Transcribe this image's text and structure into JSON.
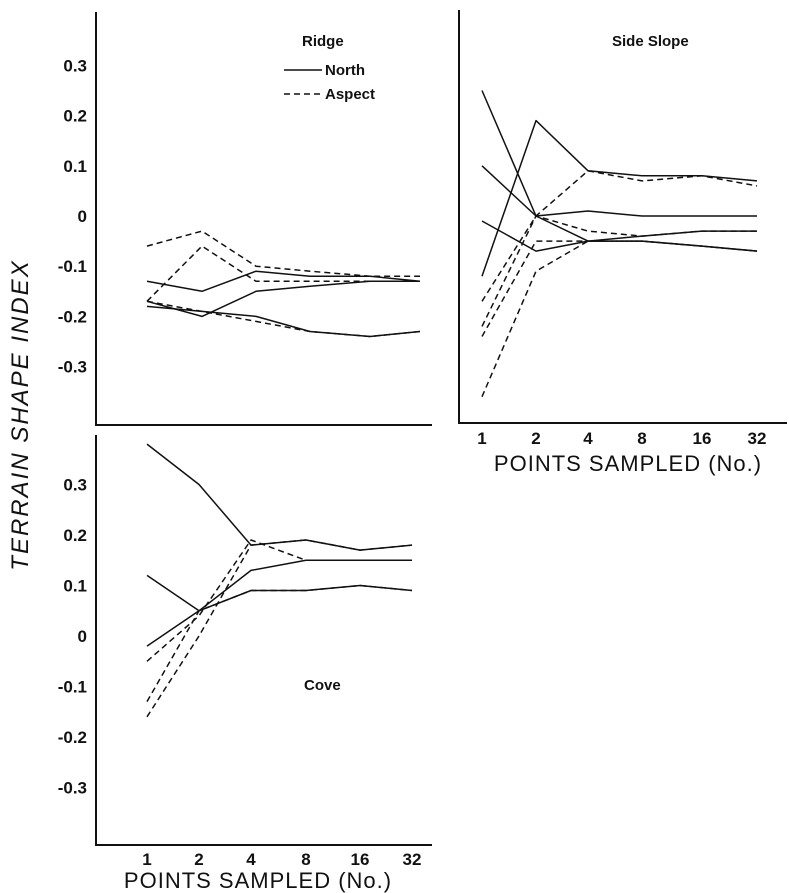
{
  "figure": {
    "ylabel": "TERRAIN SHAPE INDEX"
  },
  "legend": {
    "title": "Ridge",
    "north_label": "North",
    "aspect_label": "Aspect"
  },
  "chart_data": [
    {
      "type": "line",
      "title": "Ridge",
      "xlabel": "",
      "ylabel": "TERRAIN SHAPE INDEX",
      "categories": [
        "1",
        "2",
        "4",
        "8",
        "16",
        "32"
      ],
      "yticks": [
        "0.3",
        "0.2",
        "0.1",
        "0",
        "-0.1",
        "-0.2",
        "-0.3"
      ],
      "ylim": [
        -0.4,
        0.4
      ],
      "series": [
        {
          "style": "solid",
          "values": [
            -0.13,
            -0.15,
            -0.11,
            -0.12,
            -0.12,
            -0.13
          ]
        },
        {
          "style": "solid",
          "values": [
            -0.17,
            -0.2,
            -0.15,
            -0.14,
            -0.13,
            -0.13
          ]
        },
        {
          "style": "solid",
          "values": [
            -0.18,
            -0.19,
            -0.2,
            -0.23,
            -0.24,
            -0.23
          ]
        },
        {
          "style": "dashed",
          "values": [
            -0.06,
            -0.03,
            -0.1,
            -0.11,
            -0.12,
            -0.12
          ]
        },
        {
          "style": "dashed",
          "values": [
            -0.17,
            -0.06,
            -0.13,
            -0.13,
            -0.13,
            -0.13
          ]
        },
        {
          "style": "dashed",
          "values": [
            -0.17,
            -0.19,
            -0.21,
            -0.23,
            -0.24,
            -0.23
          ]
        }
      ]
    },
    {
      "type": "line",
      "title": "Side Slope",
      "xlabel": "POINTS SAMPLED (No.)",
      "categories": [
        "1",
        "2",
        "4",
        "8",
        "16",
        "32"
      ],
      "ylim": [
        -0.4,
        0.4
      ],
      "series": [
        {
          "style": "solid",
          "values": [
            0.25,
            0.0,
            0.01,
            0.0,
            0.0,
            0.0
          ]
        },
        {
          "style": "solid",
          "values": [
            0.1,
            0.0,
            -0.05,
            -0.05,
            -0.06,
            -0.07
          ]
        },
        {
          "style": "solid",
          "values": [
            -0.01,
            -0.07,
            -0.05,
            -0.04,
            -0.03,
            -0.03
          ]
        },
        {
          "style": "solid",
          "values": [
            -0.12,
            0.19,
            0.09,
            0.08,
            0.08,
            0.07
          ]
        },
        {
          "style": "dashed",
          "values": [
            -0.17,
            0.0,
            0.09,
            0.07,
            0.08,
            0.06
          ]
        },
        {
          "style": "dashed",
          "values": [
            -0.22,
            0.0,
            -0.03,
            -0.04,
            -0.03,
            -0.03
          ]
        },
        {
          "style": "dashed",
          "values": [
            -0.24,
            -0.05,
            -0.05,
            -0.05,
            -0.06,
            -0.07
          ]
        },
        {
          "style": "dashed",
          "values": [
            -0.36,
            -0.11,
            -0.05,
            -0.05,
            -0.06,
            -0.07
          ]
        }
      ]
    },
    {
      "type": "line",
      "title": "Cove",
      "xlabel": "POINTS SAMPLED (No.)",
      "ylabel": "TERRAIN SHAPE INDEX",
      "categories": [
        "1",
        "2",
        "4",
        "8",
        "16",
        "32"
      ],
      "yticks": [
        "0.3",
        "0.2",
        "0.1",
        "0",
        "-0.1",
        "-0.2",
        "-0.3"
      ],
      "ylim": [
        -0.4,
        0.4
      ],
      "series": [
        {
          "style": "solid",
          "values": [
            0.38,
            0.3,
            0.18,
            0.19,
            0.17,
            0.18
          ]
        },
        {
          "style": "solid",
          "values": [
            0.12,
            0.05,
            0.13,
            0.15,
            0.15,
            0.15
          ]
        },
        {
          "style": "solid",
          "values": [
            -0.02,
            0.05,
            0.09,
            0.09,
            0.1,
            0.09
          ]
        },
        {
          "style": "dashed",
          "values": [
            -0.05,
            0.04,
            0.19,
            0.15,
            0.15,
            0.15
          ]
        },
        {
          "style": "dashed",
          "values": [
            -0.13,
            0.05,
            0.09,
            0.09,
            0.1,
            0.09
          ]
        },
        {
          "style": "dashed",
          "values": [
            -0.16,
            0.0,
            0.18,
            0.19,
            0.17,
            0.18
          ]
        }
      ]
    }
  ]
}
